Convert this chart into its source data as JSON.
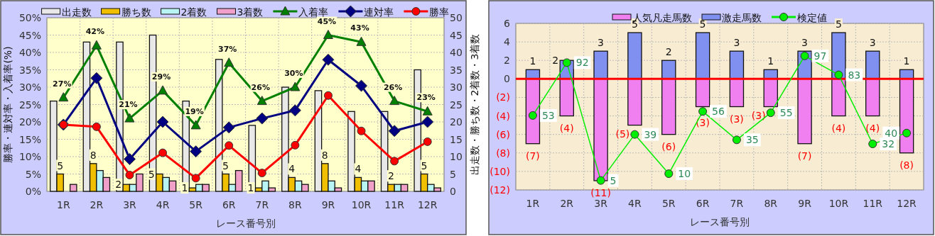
{
  "chart_data": [
    {
      "type": "bar",
      "xlabel": "レース番号別",
      "ylabel": "勝率・連対率・入着率(%)",
      "y2label": "出走数・勝ち数・2着数・3着数",
      "categories": [
        "1R",
        "2R",
        "3R",
        "4R",
        "5R",
        "6R",
        "7R",
        "8R",
        "9R",
        "10R",
        "11R",
        "12R"
      ],
      "series": [
        {
          "name": "出走数",
          "type": "bar",
          "axis": "y2",
          "color": "#e8e8e8",
          "values": [
            26,
            43,
            43,
            45,
            26,
            38,
            19,
            30,
            29,
            23,
            23,
            35
          ]
        },
        {
          "name": "勝ち数",
          "type": "bar",
          "axis": "y2",
          "color": "#f0c000",
          "values": [
            5,
            8,
            2,
            5,
            1,
            5,
            1,
            4,
            8,
            4,
            2,
            5
          ],
          "value_labels": [
            "5",
            "8",
            "2",
            "5",
            "1",
            "5",
            "1",
            "4",
            "8",
            "4",
            "2",
            "5"
          ]
        },
        {
          "name": "2着数",
          "type": "bar",
          "axis": "y2",
          "color": "#b8f4f4",
          "values": [
            0,
            6,
            2,
            4,
            2,
            2,
            3,
            3,
            3,
            3,
            2,
            2
          ]
        },
        {
          "name": "3着数",
          "type": "bar",
          "axis": "y2",
          "color": "#f0a0c8",
          "values": [
            2,
            4,
            5,
            3,
            2,
            6,
            1,
            2,
            1,
            3,
            2,
            1
          ]
        },
        {
          "name": "入着率",
          "type": "line",
          "axis": "y",
          "color": "#008000",
          "marker": "triangle",
          "values": [
            27,
            42,
            21,
            29,
            19,
            37,
            26,
            30,
            45,
            43,
            26,
            23
          ],
          "value_labels": [
            "27%",
            "42%",
            "21%",
            "29%",
            "19%",
            "37%",
            "26%",
            "30%",
            "45%",
            "43%",
            "26%",
            "23%"
          ]
        },
        {
          "name": "連対率",
          "type": "line",
          "axis": "y",
          "color": "#000080",
          "marker": "diamond",
          "values": [
            19.2,
            32.6,
            9.3,
            20,
            11.5,
            18.4,
            21,
            23.3,
            37.9,
            30.4,
            17.4,
            20
          ]
        },
        {
          "name": "勝率",
          "type": "line",
          "axis": "y",
          "color": "#ff0000",
          "marker": "circle",
          "values": [
            19.2,
            18.6,
            4.7,
            11.1,
            3.8,
            13.2,
            5.3,
            13.3,
            27.6,
            17.4,
            8.7,
            14.3
          ]
        }
      ],
      "ylim": [
        0,
        50
      ],
      "yticks": [
        {
          "value": 0,
          "label": "0%"
        },
        {
          "value": 5,
          "label": "5%"
        },
        {
          "value": 10,
          "label": "10%"
        },
        {
          "value": 15,
          "label": "15%"
        },
        {
          "value": 20,
          "label": "20%"
        },
        {
          "value": 25,
          "label": "25%"
        },
        {
          "value": 30,
          "label": "30%"
        },
        {
          "value": 35,
          "label": "35%"
        },
        {
          "value": 40,
          "label": "40%"
        },
        {
          "value": 45,
          "label": "45%"
        },
        {
          "value": 50,
          "label": "50%"
        }
      ],
      "y2lim": [
        0,
        50
      ],
      "y2ticks": [
        0,
        5,
        10,
        15,
        20,
        25,
        30,
        35,
        40,
        45,
        50
      ],
      "grid": true,
      "legend": "top"
    },
    {
      "type": "bar",
      "xlabel": "レース番号別",
      "stacked": true,
      "categories": [
        "1R",
        "2R",
        "3R",
        "4R",
        "5R",
        "6R",
        "7R",
        "8R",
        "9R",
        "10R",
        "11R",
        "12R"
      ],
      "series": [
        {
          "name": "人気凡走馬数",
          "type": "bar",
          "axis": "y",
          "color": "#f080f0",
          "values": [
            -7,
            -4,
            -11,
            -5,
            -6,
            -3,
            -3,
            -3,
            -7,
            -4,
            -4,
            -8
          ],
          "value_labels": [
            "(7)",
            "(4)",
            "(11)",
            "(5)",
            "(6)",
            "(3)",
            "(3)",
            "(3)",
            "(7)",
            "(4)",
            "(4)",
            "(8)"
          ]
        },
        {
          "name": "激走馬数",
          "type": "bar",
          "axis": "y",
          "color": "#8090f0",
          "values": [
            1,
            2,
            3,
            5,
            2,
            5,
            3,
            1,
            3,
            5,
            3,
            1
          ],
          "value_labels": [
            "1",
            "2",
            "3",
            "5",
            "2",
            "5",
            "3",
            "1",
            "3",
            "5",
            "3",
            "1"
          ]
        },
        {
          "name": "検定値",
          "type": "line",
          "axis": "y2",
          "color": "#00ee00",
          "marker": "circle",
          "values": [
            53,
            92,
            5,
            39,
            10,
            56,
            35,
            55,
            97,
            83,
            32,
            40
          ],
          "value_labels": [
            "53",
            "92",
            "5",
            "39",
            "10",
            "56",
            "35",
            "55",
            "97",
            "83",
            "32",
            "40"
          ]
        }
      ],
      "ylim": [
        -12,
        6
      ],
      "yticks": [
        {
          "value": -12,
          "label": "(12)"
        },
        {
          "value": -10,
          "label": "(10)"
        },
        {
          "value": -8,
          "label": "(8)"
        },
        {
          "value": -6,
          "label": "(6)"
        },
        {
          "value": -4,
          "label": "(4)"
        },
        {
          "value": -2,
          "label": "(2)"
        },
        0,
        2,
        4,
        6
      ],
      "y2lim": [
        -2,
        121
      ],
      "tick_labels": "xy",
      "ref_lines": [
        {
          "axis": "y",
          "value": 0,
          "color": "#ff0000"
        }
      ],
      "grid": true,
      "legend": "top"
    }
  ]
}
